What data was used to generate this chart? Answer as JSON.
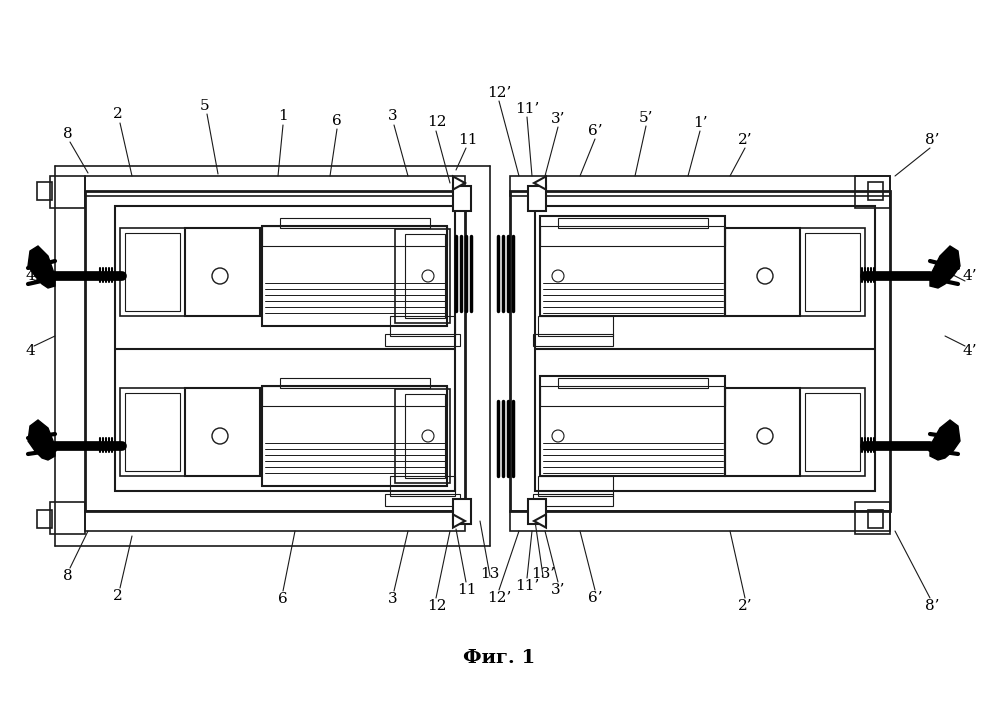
{
  "title": "Фиг. 1",
  "bg_color": "#ffffff",
  "lc": "#1a1a1a",
  "fig_width": 9.99,
  "fig_height": 7.06,
  "dpi": 100
}
